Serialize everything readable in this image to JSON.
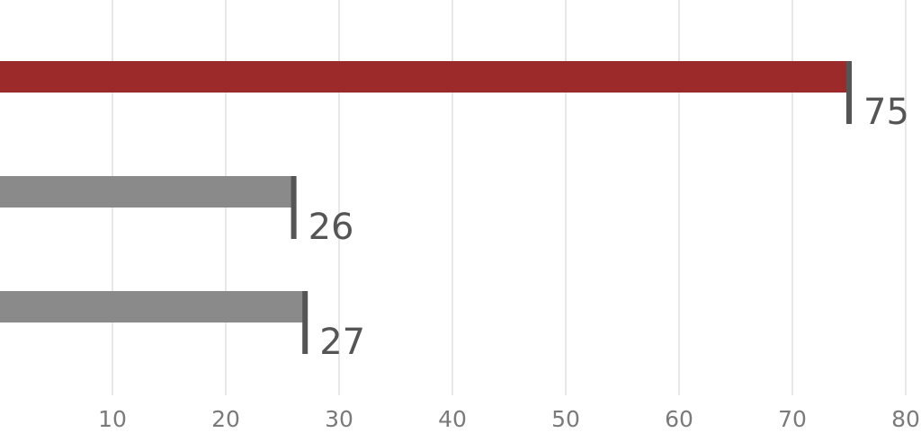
{
  "chart_data": {
    "type": "bar",
    "orientation": "horizontal",
    "categories": [
      null,
      null,
      null
    ],
    "values": [
      75,
      26,
      27
    ],
    "colors": [
      "#9c2a2b",
      "#8a8a8a",
      "#8a8a8a"
    ],
    "xlim": [
      0,
      80
    ],
    "xticks": [
      10,
      20,
      30,
      40,
      50,
      60,
      70,
      80
    ],
    "grid": true
  }
}
